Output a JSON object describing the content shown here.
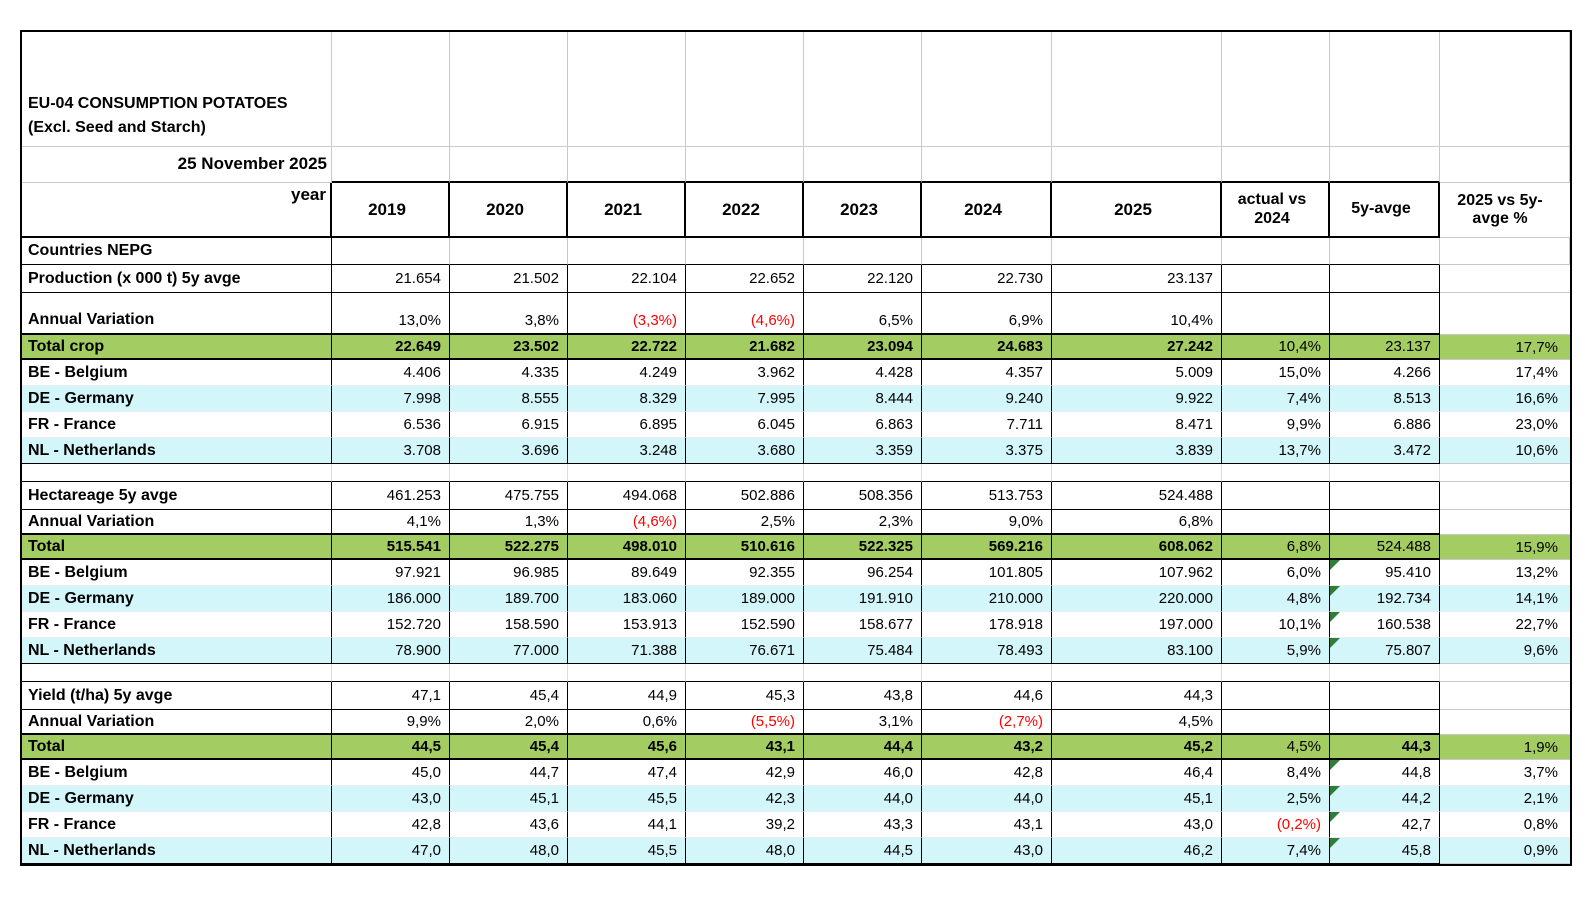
{
  "report": {
    "title": "EU-04 CONSUMPTION POTATOES (Excl. Seed and Starch)",
    "date": "25 November 2025",
    "year_row_label": "year",
    "columns": [
      "2019",
      "2020",
      "2021",
      "2022",
      "2023",
      "2024",
      "2025",
      "actual vs 2024",
      "5y-avge",
      "2025 vs 5y-avge %"
    ]
  },
  "colors": {
    "total_row_green": "#a3cd62",
    "alt_row_cyan": "#d2f6fa",
    "negative_red": "#fe0000",
    "indicator_green": "#2e7d3a",
    "border_black": "#000000",
    "gridline_gray": "#c9c9c9"
  },
  "rows": [
    {
      "name": "title",
      "type": "title",
      "label": "EU-04 CONSUMPTION POTATOES (Excl. Seed and Starch)"
    },
    {
      "name": "date",
      "type": "date",
      "label": "25 November 2025"
    },
    {
      "name": "years",
      "type": "years",
      "label": "year",
      "values": [
        "2019",
        "2020",
        "2021",
        "2022",
        "2023",
        "2024",
        "2025",
        "actual vs 2024",
        "5y-avge",
        "2025 vs 5y-avge %"
      ]
    },
    {
      "name": "countries-nepg",
      "type": "plainlabel",
      "label": "Countries NEPG"
    },
    {
      "name": "production-5y-avge",
      "type": "metric",
      "label": "Production (x 000 t) 5y avge",
      "values": [
        "21.654",
        "21.502",
        "22.104",
        "22.652",
        "22.120",
        "22.730",
        "23.137",
        "",
        "",
        ""
      ]
    },
    {
      "name": "production-annual-variation",
      "type": "variation",
      "tall": true,
      "label": "Annual Variation",
      "values": [
        "13,0%",
        "3,8%",
        "(3,3%)",
        "(4,6%)",
        "6,5%",
        "6,9%",
        "10,4%",
        "",
        "",
        ""
      ]
    },
    {
      "name": "total-crop",
      "type": "total",
      "label": "Total crop",
      "values": [
        "22.649",
        "23.502",
        "22.722",
        "21.682",
        "23.094",
        "24.683",
        "27.242",
        "10,4%",
        "23.137",
        "17,7%"
      ]
    },
    {
      "name": "production-be-belgium",
      "type": "country",
      "label": "BE - Belgium",
      "values": [
        "4.406",
        "4.335",
        "4.249",
        "3.962",
        "4.428",
        "4.357",
        "5.009",
        "15,0%",
        "4.266",
        "17,4%"
      ]
    },
    {
      "name": "production-de-germany",
      "type": "country-alt",
      "label": "DE - Germany",
      "values": [
        "7.998",
        "8.555",
        "8.329",
        "7.995",
        "8.444",
        "9.240",
        "9.922",
        "7,4%",
        "8.513",
        "16,6%"
      ]
    },
    {
      "name": "production-fr-france",
      "type": "country",
      "label": "FR - France",
      "values": [
        "6.536",
        "6.915",
        "6.895",
        "6.045",
        "6.863",
        "7.711",
        "8.471",
        "9,9%",
        "6.886",
        "23,0%"
      ]
    },
    {
      "name": "production-nl-netherlands",
      "type": "country-alt",
      "last": true,
      "label": "NL - Netherlands",
      "values": [
        "3.708",
        "3.696",
        "3.248",
        "3.680",
        "3.359",
        "3.375",
        "3.839",
        "13,7%",
        "3.472",
        "10,6%"
      ]
    },
    {
      "name": "spacer-1",
      "type": "spacer"
    },
    {
      "name": "hectareage-5y-avge",
      "type": "metric",
      "label": "Hectareage 5y avge",
      "values": [
        "461.253",
        "475.755",
        "494.068",
        "502.886",
        "508.356",
        "513.753",
        "524.488",
        "",
        "",
        ""
      ]
    },
    {
      "name": "hectareage-annual-variation",
      "type": "variation",
      "label": "Annual Variation",
      "values": [
        "4,1%",
        "1,3%",
        "(4,6%)",
        "2,5%",
        "2,3%",
        "9,0%",
        "6,8%",
        "",
        "",
        ""
      ]
    },
    {
      "name": "hectareage-total",
      "type": "total",
      "label": "Total",
      "values": [
        "515.541",
        "522.275",
        "498.010",
        "510.616",
        "522.325",
        "569.216",
        "608.062",
        "6,8%",
        "524.488",
        "15,9%"
      ]
    },
    {
      "name": "hectareage-be-belgium",
      "type": "country",
      "indicator": true,
      "label": "BE - Belgium",
      "values": [
        "97.921",
        "96.985",
        "89.649",
        "92.355",
        "96.254",
        "101.805",
        "107.962",
        "6,0%",
        "95.410",
        "13,2%"
      ]
    },
    {
      "name": "hectareage-de-germany",
      "type": "country-alt",
      "indicator": true,
      "label": "DE - Germany",
      "values": [
        "186.000",
        "189.700",
        "183.060",
        "189.000",
        "191.910",
        "210.000",
        "220.000",
        "4,8%",
        "192.734",
        "14,1%"
      ]
    },
    {
      "name": "hectareage-fr-france",
      "type": "country",
      "indicator": true,
      "label": "FR - France",
      "values": [
        "152.720",
        "158.590",
        "153.913",
        "152.590",
        "158.677",
        "178.918",
        "197.000",
        "10,1%",
        "160.538",
        "22,7%"
      ]
    },
    {
      "name": "hectareage-nl-netherlands",
      "type": "country-alt",
      "indicator": true,
      "last": true,
      "label": "NL - Netherlands",
      "values": [
        "78.900",
        "77.000",
        "71.388",
        "76.671",
        "75.484",
        "78.493",
        "83.100",
        "5,9%",
        "75.807",
        "9,6%"
      ]
    },
    {
      "name": "spacer-2",
      "type": "spacer"
    },
    {
      "name": "yield-5y-avge",
      "type": "metric",
      "label": "Yield (t/ha) 5y avge",
      "values": [
        "47,1",
        "45,4",
        "44,9",
        "45,3",
        "43,8",
        "44,6",
        "44,3",
        "",
        "",
        ""
      ]
    },
    {
      "name": "yield-annual-variation",
      "type": "variation",
      "label": "Annual Variation",
      "values": [
        "9,9%",
        "2,0%",
        "0,6%",
        "(5,5%)",
        "3,1%",
        "(2,7%)",
        "4,5%",
        "",
        "",
        ""
      ]
    },
    {
      "name": "yield-total",
      "type": "total",
      "bold_5y": true,
      "label": "Total",
      "values": [
        "44,5",
        "45,4",
        "45,6",
        "43,1",
        "44,4",
        "43,2",
        "45,2",
        "4,5%",
        "44,3",
        "1,9%"
      ]
    },
    {
      "name": "yield-be-belgium",
      "type": "country",
      "indicator": true,
      "label": "BE - Belgium",
      "values": [
        "45,0",
        "44,7",
        "47,4",
        "42,9",
        "46,0",
        "42,8",
        "46,4",
        "8,4%",
        "44,8",
        "3,7%"
      ]
    },
    {
      "name": "yield-de-germany",
      "type": "country-alt",
      "indicator": true,
      "label": "DE - Germany",
      "values": [
        "43,0",
        "45,1",
        "45,5",
        "42,3",
        "44,0",
        "44,0",
        "45,1",
        "2,5%",
        "44,2",
        "2,1%"
      ]
    },
    {
      "name": "yield-fr-france",
      "type": "country",
      "indicator": true,
      "label": "FR - France",
      "values": [
        "42,8",
        "43,6",
        "44,1",
        "39,2",
        "43,3",
        "43,1",
        "43,0",
        "(0,2%)",
        "42,7",
        "0,8%"
      ]
    },
    {
      "name": "yield-nl-netherlands",
      "type": "country-alt",
      "indicator": true,
      "last": true,
      "label": "NL - Netherlands",
      "values": [
        "47,0",
        "48,0",
        "45,5",
        "48,0",
        "44,5",
        "43,0",
        "46,2",
        "7,4%",
        "45,8",
        "0,9%"
      ]
    }
  ]
}
